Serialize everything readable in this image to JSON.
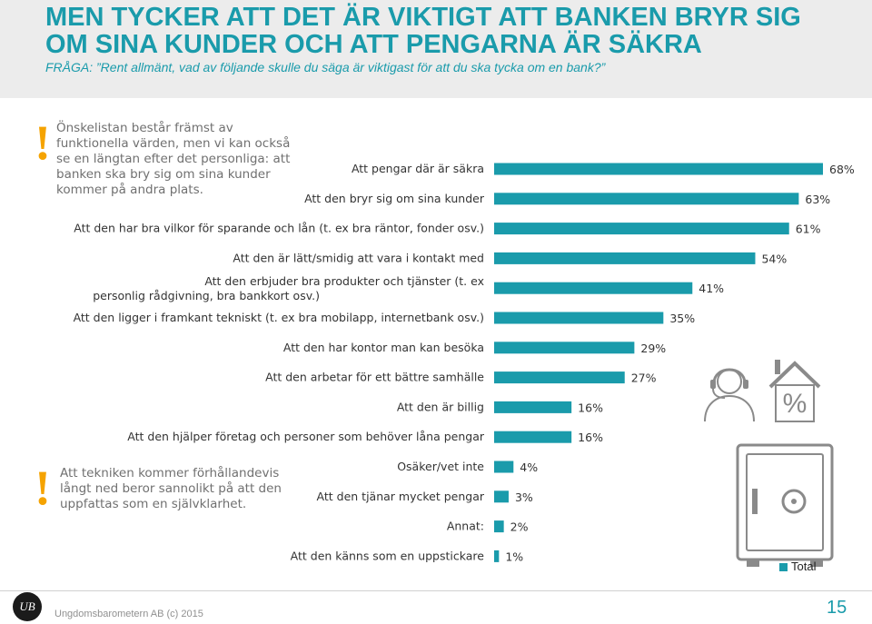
{
  "header": {
    "title": "MEN TYCKER ATT DET ÄR VIKTIGT ATT BANKEN BRYR SIG OM SINA KUNDER OCH ATT PENGARNA ÄR SÄKRA",
    "subtitle": "FRÅGA: ”Rent allmänt, vad av följande skulle du säga är viktigast för att du ska tycka om en bank?”"
  },
  "notes": {
    "note1": {
      "mark": "!",
      "text": "Önskelistan består främst av funktionella värden, men vi kan också se en längtan efter det personliga: att banken ska bry sig om sina kunder kommer på andra plats."
    },
    "note2": {
      "mark": "!",
      "text": "Att tekniken kommer förhållandevis långt ned beror sannolikt på att den uppfattas som en självklarhet."
    }
  },
  "chart_data": {
    "type": "bar",
    "orientation": "horizontal",
    "categories": [
      "Att  pengar där är säkra",
      "Att den bryr sig om sina kunder",
      "Att den har bra vilkor för sparande och lån (t. ex bra räntor, fonder osv.)",
      "Att den är lätt/smidig att vara i kontakt med",
      "Att den erbjuder bra produkter och tjänster (t. ex personlig rådgivning, bra bankkort osv.)",
      "Att den ligger i framkant tekniskt (t. ex bra mobilapp, internetbank osv.)",
      "Att den har kontor man kan besöka",
      "Att den arbetar för ett bättre samhälle",
      "Att den är billig",
      "Att den hjälper företag och personer som behöver låna pengar",
      "Osäker/vet inte",
      "Att den tjänar mycket pengar",
      "Annat:",
      "Att den känns som en uppstickare"
    ],
    "series": [
      {
        "name": "Total",
        "values": [
          68,
          63,
          61,
          54,
          41,
          35,
          29,
          27,
          16,
          16,
          4,
          3,
          2,
          1
        ]
      }
    ],
    "value_labels": [
      "68%",
      "63%",
      "61%",
      "54%",
      "41%",
      "35%",
      "29%",
      "27%",
      "16%",
      "16%",
      "4%",
      "3%",
      "2%",
      "1%"
    ],
    "xlim": [
      0,
      70
    ],
    "color": "#1a9bab",
    "grid": false,
    "legend": "bottom-right"
  },
  "footer": {
    "logo_text": "UB",
    "copyright": "Ungdomsbarometern AB (c) 2015",
    "page": "15"
  },
  "colors": {
    "accent": "#1a9bab",
    "warning": "#f5a300"
  }
}
